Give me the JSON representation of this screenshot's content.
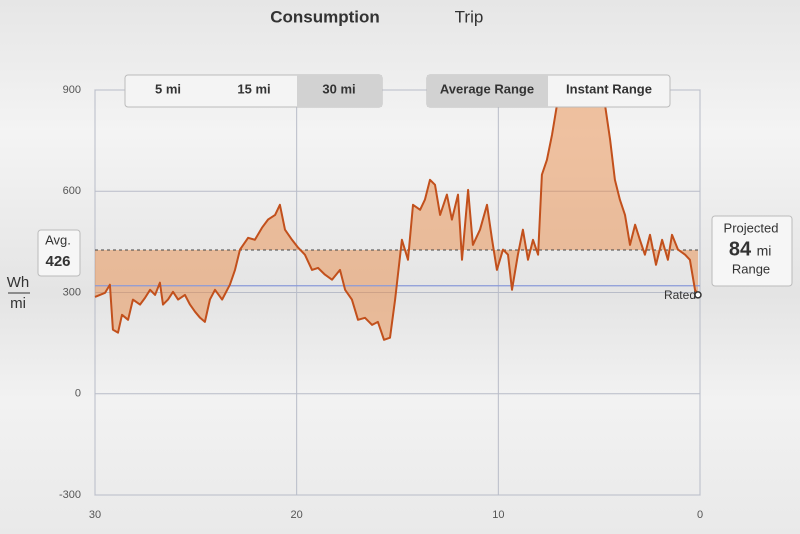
{
  "header": {
    "tabs": [
      "Consumption",
      "Trip"
    ],
    "active_tab": 0
  },
  "distance_buttons": [
    "5 mi",
    "15 mi",
    "30 mi"
  ],
  "active_distance": 2,
  "range_buttons": [
    "Average Range",
    "Instant Range"
  ],
  "active_range": 0,
  "chart_data": {
    "type": "line",
    "y_label_top": "Wh",
    "y_label_bottom": "mi",
    "xlim": [
      30,
      0
    ],
    "xticks": [
      30,
      20,
      10,
      0
    ],
    "ylim": [
      -300,
      900
    ],
    "yticks": [
      -300,
      0,
      300,
      600,
      900
    ],
    "grid": true,
    "color": "#c2501c",
    "fill_color": "#e8823a",
    "average": {
      "label": "Avg.",
      "value": 426
    },
    "rated": {
      "label": "Rated",
      "value": 320,
      "color": "#8a9ad8"
    },
    "x": [
      30.0,
      29.5,
      29.26,
      29.11,
      28.86,
      28.66,
      28.36,
      28.12,
      27.77,
      27.52,
      27.27,
      27.02,
      26.78,
      26.63,
      26.38,
      26.13,
      25.88,
      25.54,
      25.29,
      25.04,
      24.79,
      24.55,
      24.3,
      24.05,
      23.7,
      23.31,
      23.06,
      22.81,
      22.41,
      22.07,
      21.72,
      21.42,
      21.07,
      20.83,
      20.58,
      20.23,
      19.93,
      19.59,
      19.24,
      18.94,
      18.6,
      18.25,
      17.85,
      17.6,
      17.26,
      16.96,
      16.61,
      16.26,
      15.97,
      15.67,
      15.37,
      15.12,
      14.78,
      14.48,
      14.23,
      13.88,
      13.64,
      13.39,
      13.14,
      12.89,
      12.55,
      12.3,
      12.0,
      11.8,
      11.5,
      11.26,
      10.91,
      10.56,
      10.31,
      10.07,
      9.77,
      9.52,
      9.32,
      9.03,
      8.78,
      8.53,
      8.28,
      8.03,
      7.84,
      7.59,
      7.34,
      7.09,
      6.84,
      6.45,
      5.95,
      5.45,
      4.96,
      4.71,
      4.46,
      4.22,
      3.97,
      3.72,
      3.47,
      3.22,
      2.98,
      2.73,
      2.48,
      2.18,
      1.88,
      1.59,
      1.39,
      1.09,
      0.74,
      0.5,
      0.25,
      0.1
    ],
    "values": [
      287,
      299,
      323,
      190,
      181,
      234,
      219,
      279,
      264,
      284,
      308,
      293,
      329,
      264,
      279,
      302,
      279,
      293,
      264,
      243,
      225,
      213,
      279,
      308,
      279,
      323,
      367,
      427,
      462,
      456,
      492,
      516,
      530,
      560,
      486,
      456,
      433,
      412,
      367,
      373,
      353,
      338,
      367,
      308,
      279,
      219,
      225,
      204,
      213,
      160,
      166,
      279,
      456,
      397,
      560,
      545,
      575,
      634,
      619,
      530,
      590,
      516,
      590,
      397,
      604,
      441,
      486,
      560,
      456,
      367,
      427,
      412,
      308,
      412,
      486,
      397,
      456,
      412,
      649,
      693,
      767,
      856,
      900,
      900,
      900,
      900,
      900,
      856,
      753,
      634,
      575,
      530,
      441,
      501,
      456,
      412,
      471,
      382,
      456,
      397,
      471,
      427,
      412,
      397,
      308,
      293
    ]
  },
  "projected": {
    "title": "Projected",
    "value": 84,
    "unit": "mi",
    "label": "Range"
  }
}
